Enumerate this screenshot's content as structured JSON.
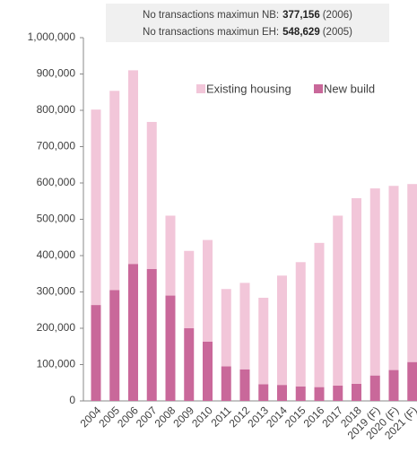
{
  "chart_data": {
    "type": "stacked_bar",
    "annotations": [
      {
        "text": "No transactions maximun NB:",
        "bold": "377,156",
        "note": "(2006)"
      },
      {
        "text": "No transactions maximun EH:",
        "bold": "548,629",
        "note": "(2005)"
      }
    ],
    "categories": [
      "2004",
      "2005",
      "2006",
      "2007",
      "2008",
      "2009",
      "2010",
      "2011",
      "2012",
      "2013",
      "2014",
      "2015",
      "2016",
      "2017",
      "2018",
      "2019 (F)",
      "2020 (F)",
      "2021 (F)"
    ],
    "series": [
      {
        "name": "New build",
        "color": "#c9689a",
        "values": [
          264000,
          305000,
          377156,
          363000,
          290000,
          200000,
          163000,
          95000,
          87000,
          46000,
          44000,
          40000,
          38000,
          42000,
          47000,
          70000,
          85000,
          107000
        ]
      },
      {
        "name": "Existing housing",
        "color": "#f2c6d9",
        "values": [
          538000,
          548629,
          533000,
          405000,
          220000,
          213000,
          280000,
          213000,
          238000,
          238000,
          301000,
          342000,
          397000,
          468000,
          511000,
          515000,
          507000,
          490000
        ]
      }
    ],
    "ylim": [
      0,
      1000000
    ],
    "yticks": [
      0,
      {
        "value": 100000,
        "label": "100,000"
      },
      {
        "value": 200000,
        "label": "200,000"
      },
      {
        "value": 300000,
        "label": "300,000"
      },
      {
        "value": 400000,
        "label": "400,000"
      },
      {
        "value": 500000,
        "label": "500,000"
      },
      {
        "value": 600000,
        "label": "600,000"
      },
      {
        "value": 700000,
        "label": "700,000"
      },
      {
        "value": 800000,
        "label": "800,000"
      },
      {
        "value": 900000,
        "label": "900,000"
      },
      {
        "value": 1000000,
        "label": "1,000,000"
      }
    ],
    "legend": "top-right"
  }
}
